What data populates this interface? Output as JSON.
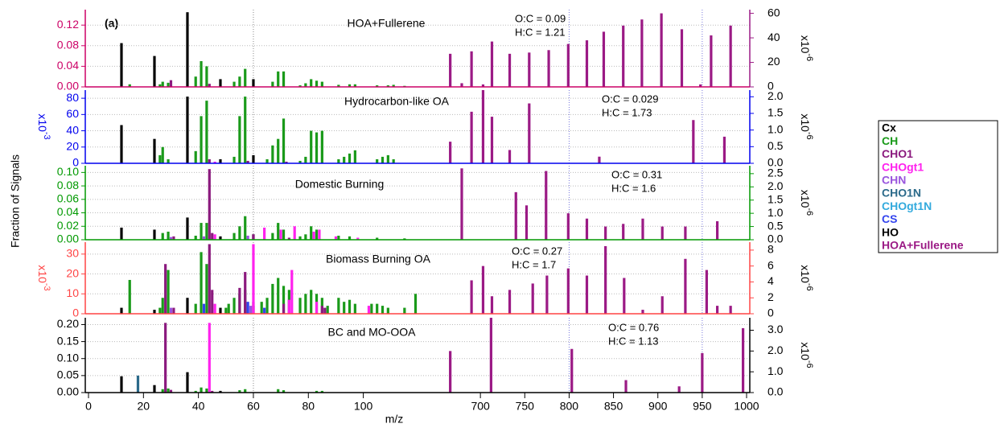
{
  "chart_data": [
    {
      "type": "bar",
      "title": "HOA+Fullerene",
      "annotations": [
        "O:C = 0.09",
        "H:C = 1.21"
      ],
      "axis_color": "#cc0066",
      "y2_color": "#9b1a85",
      "ylim": [
        0,
        0.15
      ],
      "yticks": [
        {
          "value": 0,
          "label": "0.00"
        },
        {
          "value": 0.04,
          "label": "0.04"
        },
        {
          "value": 0.08,
          "label": "0.08"
        },
        0.12
      ],
      "y2lim": [
        0,
        63
      ],
      "y2ticks": [
        0,
        20,
        40,
        60
      ],
      "y2scale_label": {
        "base": "x10",
        "exp": "-6"
      },
      "grid": true,
      "series": [
        {
          "name": "Cx",
          "color": "#000000",
          "x": [
            12,
            24,
            36,
            48,
            60
          ],
          "values": [
            0.085,
            0.06,
            0.145,
            0.015,
            0.015
          ]
        },
        {
          "name": "CH",
          "color": "#1a9a1a",
          "x": [
            15,
            26,
            27,
            29,
            39,
            41,
            43,
            53,
            55,
            57,
            67,
            69,
            71,
            77,
            79,
            81,
            83,
            85,
            91,
            95,
            97,
            105,
            109,
            111,
            115
          ],
          "values": [
            0.005,
            0.005,
            0.01,
            0.008,
            0.02,
            0.05,
            0.04,
            0.01,
            0.02,
            0.035,
            0.01,
            0.03,
            0.03,
            0.003,
            0.007,
            0.015,
            0.012,
            0.01,
            0.004,
            0.005,
            0.005,
            0.003,
            0.003,
            0.004,
            0.002
          ]
        },
        {
          "name": "CHO1",
          "color": "#8b1a7e",
          "x": [
            30,
            44
          ],
          "values": [
            0.013,
            0.006
          ]
        },
        {
          "name": "HOA+Fullerene",
          "color": "#9b1a85",
          "axis": "y2",
          "x": [
            666,
            679,
            690,
            703,
            713,
            733,
            755,
            777,
            799,
            820,
            839,
            861,
            882,
            904,
            927,
            948,
            960,
            982
          ],
          "values": [
            27,
            3,
            29,
            2,
            37,
            27,
            28,
            30,
            35,
            38,
            45,
            50,
            55,
            60,
            47,
            2,
            42,
            50
          ]
        }
      ]
    },
    {
      "type": "bar",
      "title": "Hydrocarbon-like OA",
      "annotations": [
        "O:C = 0.029",
        "H:C = 1.73"
      ],
      "axis_color": "#0000ee",
      "y2_color": "#0000ee",
      "ylim": [
        0,
        90
      ],
      "yticks": [
        0,
        20,
        40,
        60,
        80
      ],
      "yscale_label": {
        "base": "x10",
        "exp": "-3"
      },
      "y2lim": [
        0,
        2.2
      ],
      "y2ticks": [
        {
          "value": 0,
          "label": "0.0"
        },
        0.5,
        {
          "value": 1,
          "label": "1.0"
        },
        1.5,
        {
          "value": 2,
          "label": "2.0"
        }
      ],
      "y2scale_label": {
        "base": "x10",
        "exp": "-6"
      },
      "grid": true,
      "series": [
        {
          "name": "Cx",
          "color": "#000000",
          "x": [
            12,
            24,
            36,
            48,
            60
          ],
          "values": [
            47,
            30,
            82,
            5,
            10
          ]
        },
        {
          "name": "CH",
          "color": "#1a9a1a",
          "x": [
            26,
            27,
            29,
            39,
            41,
            43,
            53,
            55,
            57,
            65,
            67,
            69,
            71,
            77,
            79,
            81,
            83,
            85,
            91,
            93,
            95,
            97,
            105,
            107,
            109,
            111
          ],
          "values": [
            10,
            20,
            5,
            15,
            58,
            77,
            8,
            58,
            82,
            5,
            22,
            30,
            55,
            3,
            8,
            40,
            38,
            40,
            5,
            8,
            12,
            16,
            5,
            8,
            10,
            5
          ]
        },
        {
          "name": "CHO1",
          "color": "#8b1a7e",
          "x": [
            44,
            58,
            72
          ],
          "values": [
            5,
            3,
            2
          ]
        },
        {
          "name": "CHOgt1",
          "color": "#ff22ee",
          "x": [
            46
          ],
          "values": [
            2
          ]
        },
        {
          "name": "HOA+Fullerene",
          "color": "#9b1a85",
          "axis": "y2",
          "x": [
            666,
            690,
            703,
            713,
            733,
            755,
            834,
            940,
            975
          ],
          "values": [
            0.65,
            1.55,
            2.2,
            1.4,
            0.4,
            1.8,
            0.2,
            1.3,
            0.8
          ]
        }
      ]
    },
    {
      "type": "bar",
      "title": "Domestic Burning",
      "annotations": [
        "O:C = 0.31",
        "H:C = 1.6"
      ],
      "axis_color": "#009900",
      "y2_color": "#009900",
      "ylim": [
        0,
        0.11
      ],
      "yticks": [
        {
          "value": 0,
          "label": "0.00"
        },
        {
          "value": 0.02,
          "label": "0.02"
        },
        {
          "value": 0.04,
          "label": "0.04"
        },
        {
          "value": 0.06,
          "label": "0.06"
        },
        {
          "value": 0.08,
          "label": "0.08"
        },
        {
          "value": 0.1,
          "label": "0.10"
        }
      ],
      "y2lim": [
        0,
        2.8
      ],
      "y2ticks": [
        {
          "value": 0,
          "label": "0.0"
        },
        0.5,
        {
          "value": 1,
          "label": "1.0"
        },
        1.5,
        {
          "value": 2,
          "label": "2.0"
        },
        2.5
      ],
      "y2scale_label": {
        "base": "x10",
        "exp": "-6"
      },
      "grid": true,
      "series": [
        {
          "name": "Cx",
          "color": "#000000",
          "x": [
            12,
            24,
            36,
            48,
            60
          ],
          "values": [
            0.018,
            0.015,
            0.033,
            0.005,
            0.008
          ]
        },
        {
          "name": "CH",
          "color": "#1a9a1a",
          "x": [
            27,
            29,
            39,
            41,
            43,
            53,
            55,
            57,
            67,
            69,
            71,
            77,
            79,
            81,
            83,
            91,
            95,
            105,
            115
          ],
          "values": [
            0.01,
            0.012,
            0.006,
            0.025,
            0.025,
            0.01,
            0.02,
            0.035,
            0.01,
            0.025,
            0.015,
            0.005,
            0.008,
            0.02,
            0.015,
            0.006,
            0.005,
            0.003,
            0.002
          ]
        },
        {
          "name": "CHO1",
          "color": "#8b1a7e",
          "x": [
            31,
            44,
            45,
            60,
            73
          ],
          "values": [
            0.005,
            0.105,
            0.01,
            0.008,
            0.003
          ]
        },
        {
          "name": "CHOgt1",
          "color": "#ff22ee",
          "x": [
            46,
            64,
            70,
            75,
            82,
            84,
            90,
            98
          ],
          "values": [
            0.008,
            0.018,
            0.015,
            0.02,
            0.012,
            0.015,
            0.005,
            0.003
          ]
        },
        {
          "name": "CHN",
          "color": "#9955dd",
          "x": [
            30,
            42,
            58
          ],
          "values": [
            0.004,
            0.005,
            0.006
          ]
        },
        {
          "name": "HOA+Fullerene",
          "color": "#9b1a85",
          "axis": "y2",
          "x": [
            679,
            740,
            752,
            774,
            799,
            820,
            841,
            861,
            883,
            905,
            931,
            967
          ],
          "values": [
            2.7,
            1.8,
            1.3,
            2.6,
            1.0,
            0.8,
            0.5,
            0.6,
            0.8,
            0.5,
            0.5,
            0.7
          ]
        }
      ]
    },
    {
      "type": "bar",
      "title": "Biomass Burning OA",
      "annotations": [
        "O:C = 0.27",
        "H:C = 1.7"
      ],
      "axis_color": "#ff4444",
      "y2_color": "#ff4444",
      "ylim": [
        0,
        36
      ],
      "yticks": [
        0,
        10,
        20,
        30
      ],
      "yscale_label": {
        "base": "x10",
        "exp": "-3"
      },
      "y2lim": [
        0,
        9
      ],
      "y2ticks": [
        0,
        2,
        4,
        6,
        8
      ],
      "y2scale_label": {
        "base": "x10",
        "exp": "-6"
      },
      "grid": true,
      "series": [
        {
          "name": "Cx",
          "color": "#000000",
          "x": [
            12,
            24,
            36,
            48,
            60
          ],
          "values": [
            3,
            2,
            8,
            3,
            4
          ]
        },
        {
          "name": "CH",
          "color": "#1a9a1a",
          "x": [
            15,
            26,
            27,
            29,
            39,
            41,
            43,
            50,
            51,
            53,
            55,
            57,
            63,
            65,
            67,
            69,
            71,
            73,
            77,
            79,
            81,
            83,
            85,
            87,
            91,
            93,
            95,
            97,
            103,
            105,
            107,
            109,
            115,
            119
          ],
          "values": [
            17,
            3,
            8,
            22,
            5,
            31,
            25,
            3,
            5,
            8,
            10,
            12,
            6,
            8,
            15,
            18,
            14,
            12,
            8,
            10,
            12,
            10,
            8,
            4,
            8,
            6,
            7,
            5,
            5,
            5,
            4,
            3,
            3,
            10
          ]
        },
        {
          "name": "CHO1",
          "color": "#8b1a7e",
          "x": [
            28,
            31,
            44,
            45,
            55,
            57,
            60,
            71,
            73,
            85,
            86
          ],
          "values": [
            25,
            3,
            35,
            12,
            13,
            21,
            6,
            5,
            7,
            4,
            3
          ]
        },
        {
          "name": "CHOgt1",
          "color": "#ff22ee",
          "x": [
            46,
            60,
            73,
            74,
            83,
            102
          ],
          "values": [
            5,
            35,
            7,
            22,
            6,
            4
          ]
        },
        {
          "name": "CHN",
          "color": "#9955dd",
          "x": [
            30,
            59
          ],
          "values": [
            3,
            4
          ]
        },
        {
          "name": "CS",
          "color": "#3344ee",
          "x": [
            42,
            58,
            64
          ],
          "values": [
            5,
            6,
            3
          ]
        },
        {
          "name": "HOA+Fullerene",
          "color": "#9b1a85",
          "axis": "y2",
          "x": [
            690,
            703,
            713,
            733,
            759,
            775,
            799,
            820,
            841,
            862,
            883,
            905,
            931,
            955,
            967,
            982
          ],
          "values": [
            4.2,
            6.0,
            2.2,
            3.0,
            3.8,
            4.8,
            5.7,
            4.8,
            8.5,
            4.5,
            0.5,
            2.2,
            6.9,
            5.5,
            1.0,
            1.0
          ]
        }
      ]
    },
    {
      "type": "bar",
      "title": "BC and MO-OOA",
      "annotations": [
        "O:C = 0.76",
        "H:C = 1.13"
      ],
      "axis_color": "#000000",
      "y2_color": "#000000",
      "ylim": [
        0,
        0.22
      ],
      "yticks": [
        {
          "value": 0,
          "label": "0.00"
        },
        {
          "value": 0.05,
          "label": "0.05"
        },
        {
          "value": 0.1,
          "label": "0.10"
        },
        {
          "value": 0.15,
          "label": "0.15"
        },
        {
          "value": 0.2,
          "label": "0.20"
        }
      ],
      "y2lim": [
        0,
        3.6
      ],
      "y2ticks": [
        {
          "value": 0,
          "label": "0.0"
        },
        {
          "value": 1,
          "label": "1.0"
        },
        {
          "value": 2,
          "label": "2.0"
        },
        {
          "value": 3,
          "label": "3.0"
        }
      ],
      "y2scale_label": {
        "base": "x10",
        "exp": "-6"
      },
      "grid": true,
      "series": [
        {
          "name": "Cx",
          "color": "#000000",
          "x": [
            12,
            24,
            36,
            48
          ],
          "values": [
            0.048,
            0.022,
            0.06,
            0.005
          ]
        },
        {
          "name": "CH",
          "color": "#1a9a1a",
          "x": [
            27,
            29,
            39,
            41,
            43,
            55,
            57,
            69,
            71,
            83,
            85
          ],
          "values": [
            0.01,
            0.012,
            0.005,
            0.015,
            0.012,
            0.007,
            0.01,
            0.01,
            0.007,
            0.005,
            0.005
          ]
        },
        {
          "name": "CHO1",
          "color": "#8b1a7e",
          "x": [
            28,
            30,
            45
          ],
          "values": [
            0.205,
            0.008,
            0.005
          ]
        },
        {
          "name": "CHOgt1",
          "color": "#ff22ee",
          "x": [
            44
          ],
          "values": [
            0.205
          ]
        },
        {
          "name": "CHO1N",
          "color": "#2b6a8a",
          "x": [
            18
          ],
          "values": [
            0.05
          ]
        },
        {
          "name": "HOA+Fullerene",
          "color": "#9b1a85",
          "axis": "y2",
          "x": [
            666,
            712,
            803,
            864,
            924,
            950,
            996
          ],
          "values": [
            2.0,
            3.6,
            2.1,
            0.6,
            0.3,
            1.9,
            3.1
          ]
        }
      ]
    }
  ],
  "panel_label": "(a)",
  "ylabel": "Fraction of Signals",
  "shared_x": {
    "label": "m/z",
    "xlim": [
      0,
      125
    ],
    "xlim_high": [
      650,
      1000
    ],
    "xticks": [
      0,
      20,
      40,
      60,
      80,
      100
    ],
    "xticks_high": [
      700,
      750,
      800,
      850,
      900,
      950,
      1000
    ],
    "reference_lines": [
      60,
      800,
      950
    ]
  },
  "legend": [
    {
      "name": "Cx",
      "color": "#000000"
    },
    {
      "name": "CH",
      "color": "#1a9a1a"
    },
    {
      "name": "CHO1",
      "color": "#8b1a7e"
    },
    {
      "name": "CHOgt1",
      "color": "#ff22ee"
    },
    {
      "name": "CHN",
      "color": "#9955dd"
    },
    {
      "name": "CHO1N",
      "color": "#2b6a8a"
    },
    {
      "name": "CHOgt1N",
      "color": "#33aadd"
    },
    {
      "name": "CS",
      "color": "#3344ee"
    },
    {
      "name": "HO",
      "color": "#000000"
    },
    {
      "name": "HOA+Fullerene",
      "color": "#9b1a85"
    }
  ]
}
